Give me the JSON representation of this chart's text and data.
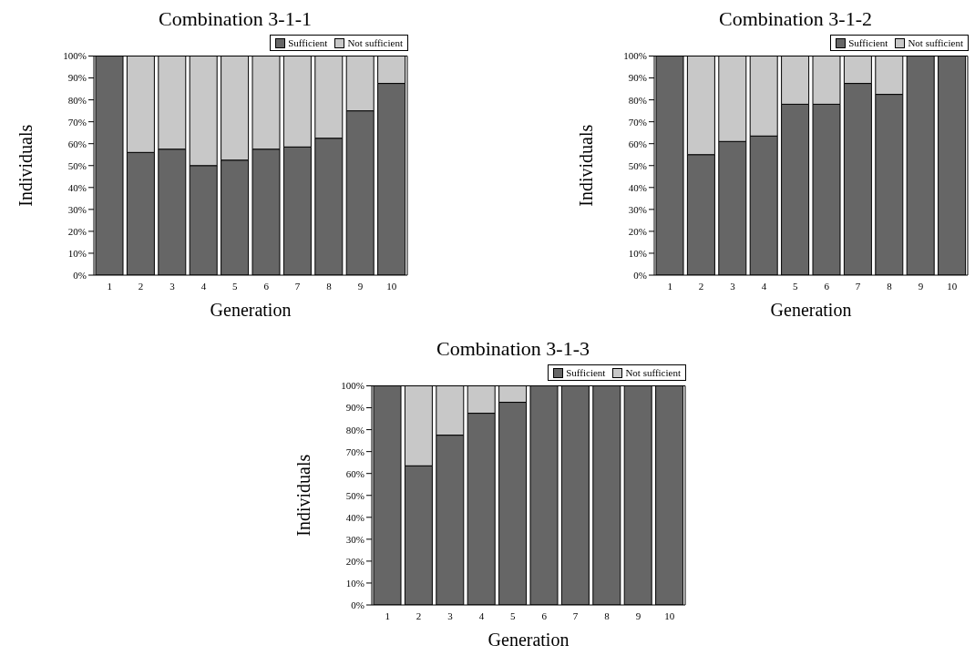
{
  "chart_data": [
    {
      "type": "bar",
      "title": "Combination 3-1-1",
      "xlabel": "Generation",
      "ylabel": "Individuals",
      "categories": [
        "1",
        "2",
        "3",
        "4",
        "5",
        "6",
        "7",
        "8",
        "9",
        "10"
      ],
      "stacked": true,
      "series": [
        {
          "name": "Sufficient",
          "color": "#666666",
          "values": [
            100,
            56,
            57.5,
            50,
            52.5,
            57.5,
            58.5,
            62.5,
            75,
            87.5
          ]
        },
        {
          "name": "Not sufficient",
          "color": "#c8c8c8",
          "values": [
            0,
            44,
            42.5,
            50,
            47.5,
            42.5,
            41.5,
            37.5,
            25,
            12.5
          ]
        }
      ],
      "ylim": [
        0,
        100
      ],
      "yticks": [
        {
          "value": 0,
          "label": "0%"
        },
        {
          "value": 10,
          "label": "10%"
        },
        {
          "value": 20,
          "label": "20%"
        },
        {
          "value": 30,
          "label": "30%"
        },
        {
          "value": 40,
          "label": "40%"
        },
        {
          "value": 50,
          "label": "50%"
        },
        {
          "value": 60,
          "label": "60%"
        },
        {
          "value": 70,
          "label": "70%"
        },
        {
          "value": 80,
          "label": "80%"
        },
        {
          "value": 90,
          "label": "90%"
        },
        {
          "value": 100,
          "label": "100%"
        }
      ],
      "legend": "top right"
    },
    {
      "type": "bar",
      "title": "Combination 3-1-2",
      "xlabel": "Generation",
      "ylabel": "Individuals",
      "categories": [
        "1",
        "2",
        "3",
        "4",
        "5",
        "6",
        "7",
        "8",
        "9",
        "10"
      ],
      "stacked": true,
      "series": [
        {
          "name": "Sufficient",
          "color": "#666666",
          "values": [
            100,
            55,
            61,
            63.5,
            78,
            78,
            87.5,
            82.5,
            100,
            100
          ]
        },
        {
          "name": "Not sufficient",
          "color": "#c8c8c8",
          "values": [
            0,
            45,
            39,
            36.5,
            22,
            22,
            12.5,
            17.5,
            0,
            0
          ]
        }
      ],
      "ylim": [
        0,
        100
      ],
      "yticks": [
        {
          "value": 0,
          "label": "0%"
        },
        {
          "value": 10,
          "label": "10%"
        },
        {
          "value": 20,
          "label": "20%"
        },
        {
          "value": 30,
          "label": "30%"
        },
        {
          "value": 40,
          "label": "40%"
        },
        {
          "value": 50,
          "label": "50%"
        },
        {
          "value": 60,
          "label": "60%"
        },
        {
          "value": 70,
          "label": "70%"
        },
        {
          "value": 80,
          "label": "80%"
        },
        {
          "value": 90,
          "label": "90%"
        },
        {
          "value": 100,
          "label": "100%"
        }
      ],
      "legend": "top right"
    },
    {
      "type": "bar",
      "title": "Combination 3-1-3",
      "xlabel": "Generation",
      "ylabel": "Individuals",
      "categories": [
        "1",
        "2",
        "3",
        "4",
        "5",
        "6",
        "7",
        "8",
        "9",
        "10"
      ],
      "stacked": true,
      "series": [
        {
          "name": "Sufficient",
          "color": "#666666",
          "values": [
            100,
            63.5,
            77.5,
            87.5,
            92.5,
            100,
            100,
            100,
            100,
            100
          ]
        },
        {
          "name": "Not sufficient",
          "color": "#c8c8c8",
          "values": [
            0,
            36.5,
            22.5,
            12.5,
            7.5,
            0,
            0,
            0,
            0,
            0
          ]
        }
      ],
      "ylim": [
        0,
        100
      ],
      "yticks": [
        {
          "value": 0,
          "label": "0%"
        },
        {
          "value": 10,
          "label": "10%"
        },
        {
          "value": 20,
          "label": "20%"
        },
        {
          "value": 30,
          "label": "30%"
        },
        {
          "value": 40,
          "label": "40%"
        },
        {
          "value": 50,
          "label": "50%"
        },
        {
          "value": 60,
          "label": "60%"
        },
        {
          "value": 70,
          "label": "70%"
        },
        {
          "value": 80,
          "label": "80%"
        },
        {
          "value": 90,
          "label": "90%"
        },
        {
          "value": 100,
          "label": "100%"
        }
      ],
      "legend": "top right"
    }
  ]
}
